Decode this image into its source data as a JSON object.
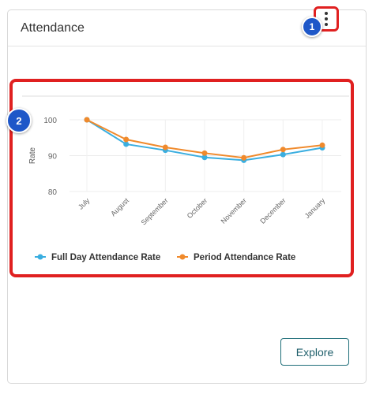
{
  "card": {
    "title": "Attendance"
  },
  "badges": {
    "one": "1",
    "two": "2"
  },
  "menu": {
    "icon": "kebab-vertical-icon"
  },
  "chart_data": {
    "type": "line",
    "categories": [
      "July",
      "August",
      "September",
      "October",
      "November",
      "December",
      "January"
    ],
    "ylabel": "Rate",
    "xlabel": "",
    "ylim": [
      80,
      100
    ],
    "yticks": [
      80,
      90,
      100
    ],
    "grid": true,
    "legend_position": "bottom",
    "series": [
      {
        "name": "Full Day Attendance Rate",
        "color": "#3aaee0",
        "values": [
          100,
          93.2,
          91.5,
          89.5,
          88.7,
          90.3,
          92.2
        ]
      },
      {
        "name": "Period Attendance Rate",
        "color": "#f08a2c",
        "values": [
          100,
          94.5,
          92.3,
          90.7,
          89.4,
          91.7,
          92.9
        ]
      }
    ]
  },
  "actions": {
    "explore_label": "Explore"
  }
}
